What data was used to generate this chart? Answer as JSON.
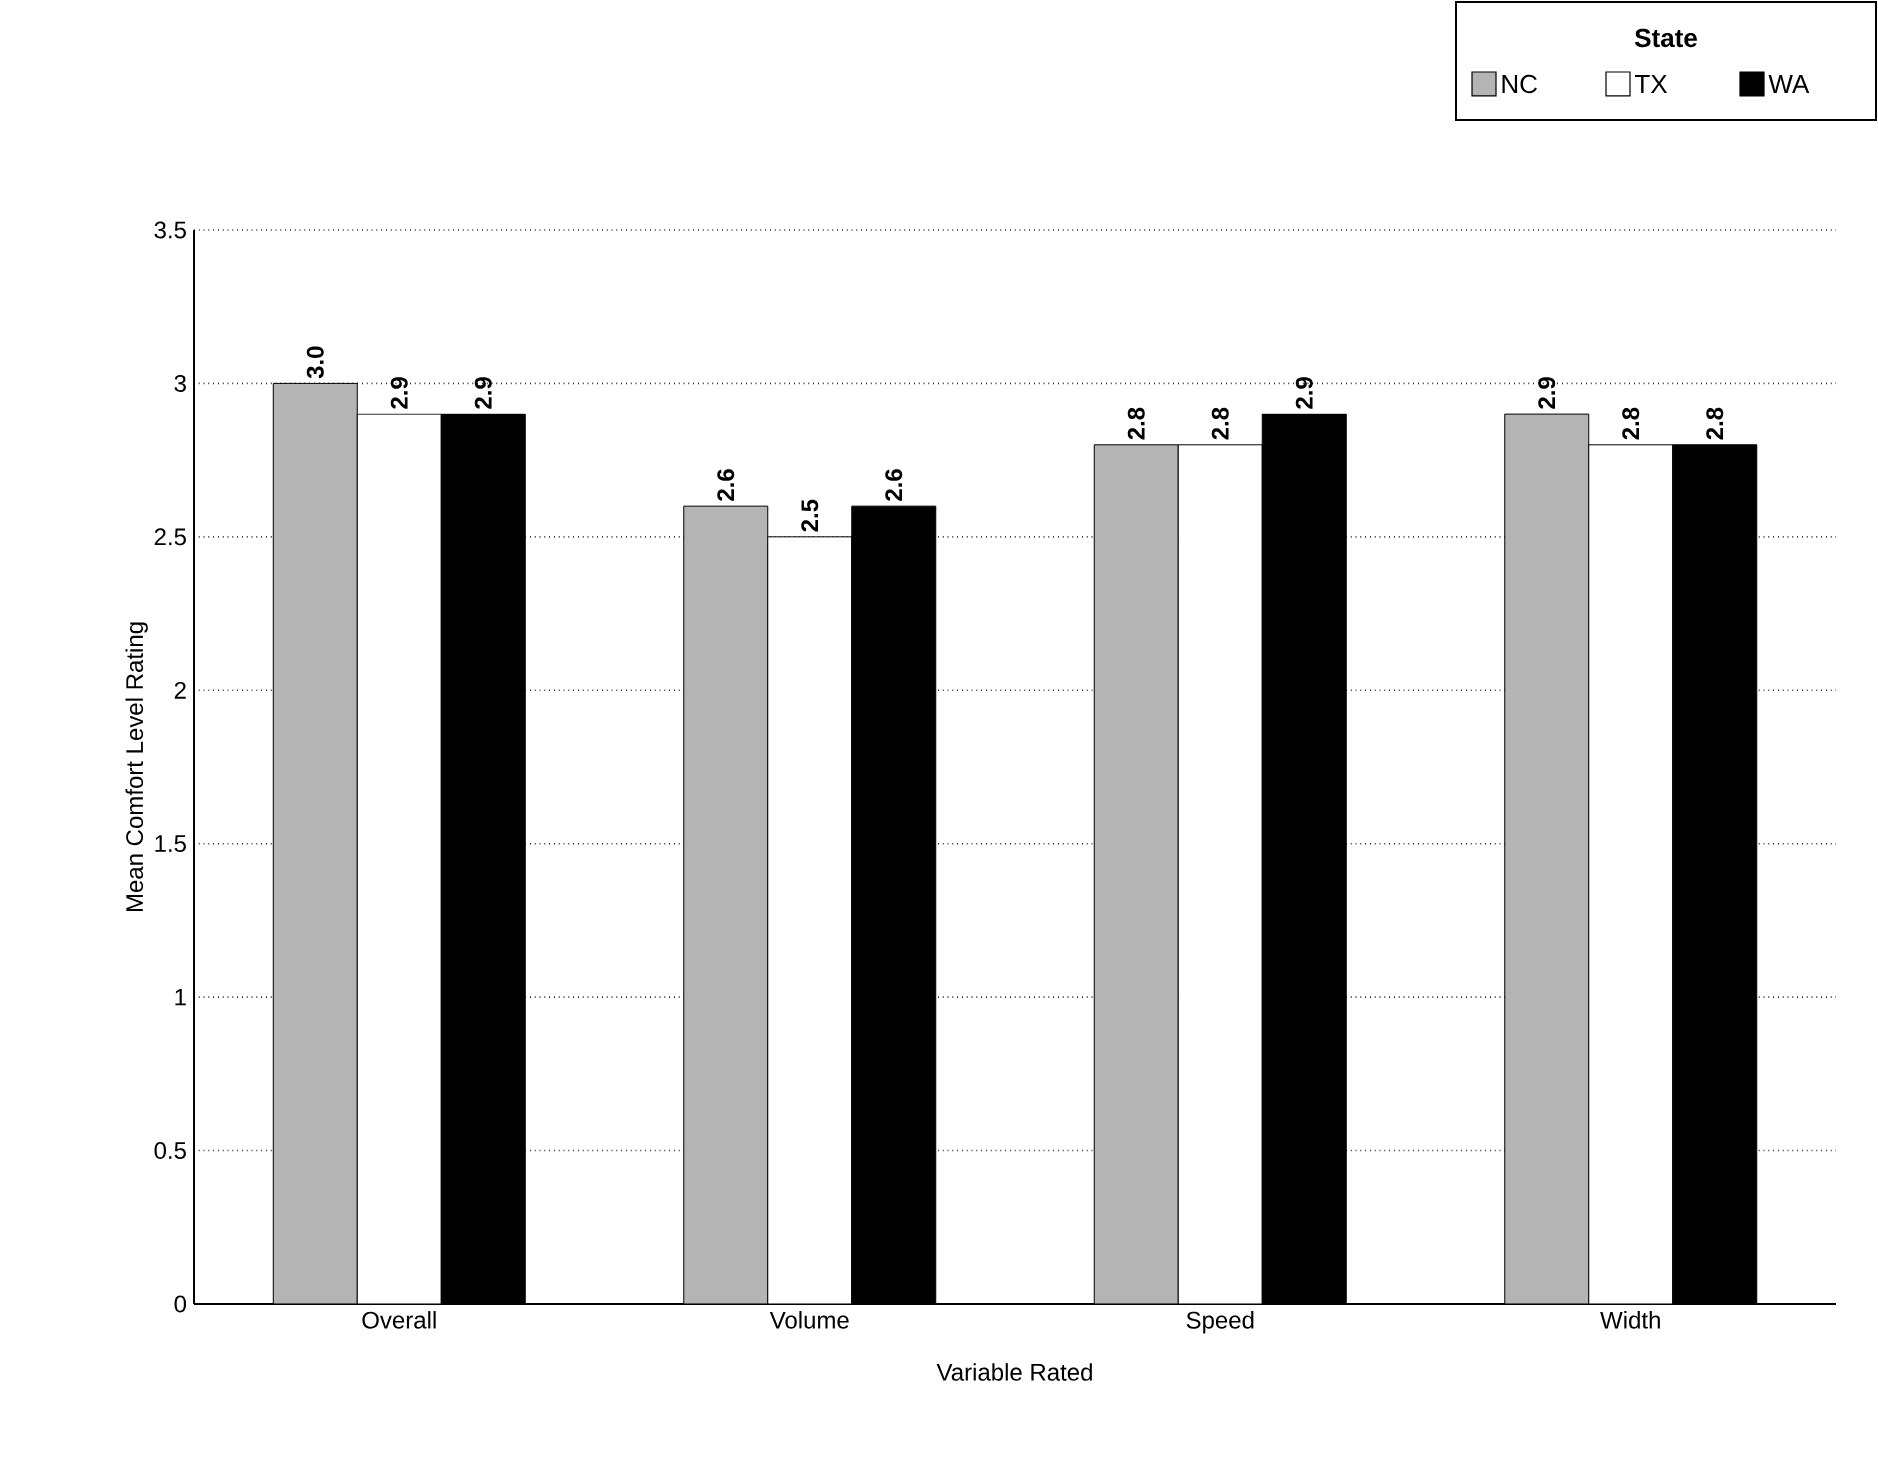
{
  "chart_data": {
    "type": "bar",
    "xlabel": "Variable Rated",
    "ylabel": "Mean Comfort Level Rating",
    "legend_title": "State",
    "categories": [
      "Overall",
      "Volume",
      "Speed",
      "Width"
    ],
    "series": [
      {
        "name": "NC",
        "color": "#b4b4b4",
        "values": [
          3.0,
          2.6,
          2.8,
          2.9
        ],
        "value_labels": [
          "3.0",
          "2.6",
          "2.8",
          "2.9"
        ]
      },
      {
        "name": "TX",
        "color": "#ffffff",
        "values": [
          2.9,
          2.5,
          2.8,
          2.8
        ],
        "value_labels": [
          "2.9",
          "2.5",
          "2.8",
          "2.8"
        ]
      },
      {
        "name": "WA",
        "color": "#000000",
        "values": [
          2.9,
          2.6,
          2.9,
          2.8
        ],
        "value_labels": [
          "2.9",
          "2.6",
          "2.9",
          "2.8"
        ]
      }
    ],
    "ylim": [
      0,
      3.5
    ],
    "yticks": [
      0,
      0.5,
      1,
      1.5,
      2,
      2.5,
      3,
      3.5
    ],
    "grid": "y",
    "legend": "top right"
  }
}
